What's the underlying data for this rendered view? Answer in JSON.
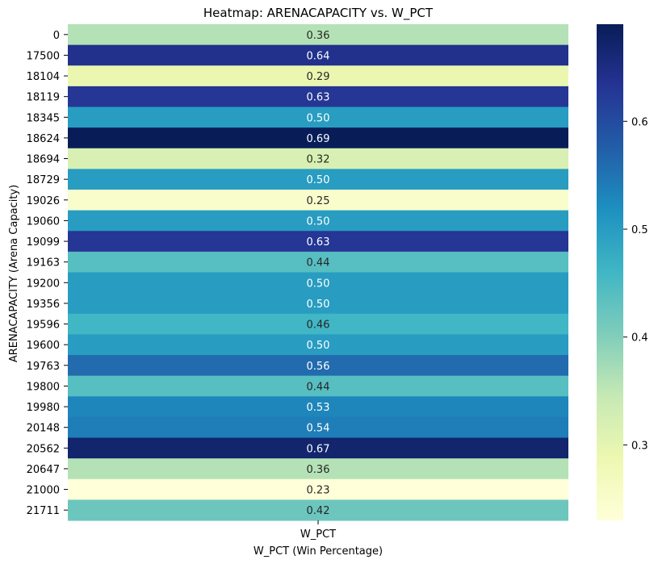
{
  "chart_data": {
    "type": "heatmap",
    "title": "Heatmap: ARENACAPACITY vs. W_PCT",
    "xlabel": "W_PCT (Win Percentage)",
    "ylabel": "ARENACAPACITY (Arena Capacity)",
    "columns": [
      "W_PCT"
    ],
    "rows": [
      "0",
      "17500",
      "18104",
      "18119",
      "18345",
      "18624",
      "18694",
      "18729",
      "19026",
      "19060",
      "19099",
      "19163",
      "19200",
      "19356",
      "19596",
      "19600",
      "19763",
      "19800",
      "19980",
      "20148",
      "20562",
      "20647",
      "21000",
      "21711"
    ],
    "values": [
      0.36,
      0.64,
      0.29,
      0.63,
      0.5,
      0.69,
      0.32,
      0.5,
      0.25,
      0.5,
      0.63,
      0.44,
      0.5,
      0.5,
      0.46,
      0.5,
      0.56,
      0.44,
      0.53,
      0.54,
      0.67,
      0.36,
      0.23,
      0.42
    ],
    "value_labels": [
      "0.36",
      "0.64",
      "0.29",
      "0.63",
      "0.50",
      "0.69",
      "0.32",
      "0.50",
      "0.25",
      "0.50",
      "0.63",
      "0.44",
      "0.50",
      "0.50",
      "0.46",
      "0.50",
      "0.56",
      "0.44",
      "0.53",
      "0.54",
      "0.67",
      "0.36",
      "0.23",
      "0.42"
    ],
    "colorbar": {
      "range": [
        0.23,
        0.69
      ],
      "ticks": [
        0.3,
        0.4,
        0.5,
        0.6
      ],
      "tick_labels": [
        "0.3",
        "0.4",
        "0.5",
        "0.6"
      ],
      "colormap": "YlGnBu"
    },
    "colormap_stops": [
      "#ffffd9",
      "#edf8b1",
      "#c7e9b4",
      "#7fcdbb",
      "#41b6c4",
      "#1d91c0",
      "#225ea8",
      "#253494",
      "#081d58"
    ],
    "grid": false,
    "legend": "none"
  }
}
